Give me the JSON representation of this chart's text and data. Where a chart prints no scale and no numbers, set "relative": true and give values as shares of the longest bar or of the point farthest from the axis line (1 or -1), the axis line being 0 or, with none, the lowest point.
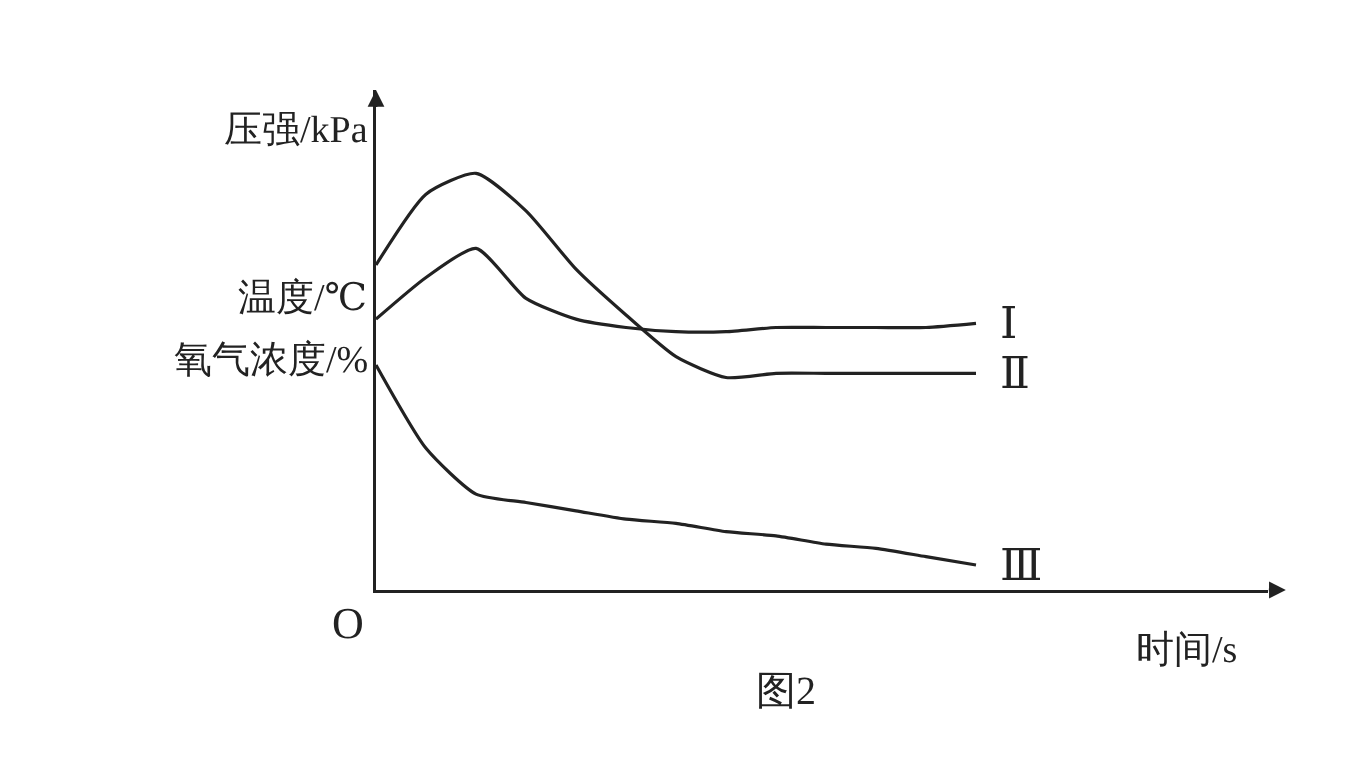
{
  "chart_data": {
    "type": "line",
    "relative": true,
    "xlabel": "时间/s",
    "ylabel": "压强/kPa\n温度/℃\n氧气浓度/%",
    "annotations": [
      "O",
      "图2"
    ],
    "legend": false,
    "marker": "none",
    "line_style": "solid",
    "categories": [
      null,
      null,
      null,
      null,
      null,
      null,
      null,
      null,
      null,
      null,
      null,
      null,
      null
    ],
    "series": [
      {
        "name": "Ⅰ",
        "color": "#222222",
        "values": [
          0.65,
          0.75,
          0.82,
          0.7,
          0.65,
          0.63,
          0.62,
          0.62,
          0.63,
          0.63,
          0.63,
          0.63,
          0.64
        ]
      },
      {
        "name": "Ⅱ",
        "color": "#222222",
        "values": [
          0.78,
          0.95,
          1.0,
          0.91,
          0.77,
          0.66,
          0.56,
          0.51,
          0.52,
          0.52,
          0.52,
          0.52,
          0.52
        ]
      },
      {
        "name": "Ⅲ",
        "color": "#222222",
        "values": [
          0.54,
          0.34,
          0.23,
          0.21,
          0.19,
          0.17,
          0.16,
          0.14,
          0.13,
          0.11,
          0.1,
          0.08,
          0.06
        ]
      }
    ]
  }
}
